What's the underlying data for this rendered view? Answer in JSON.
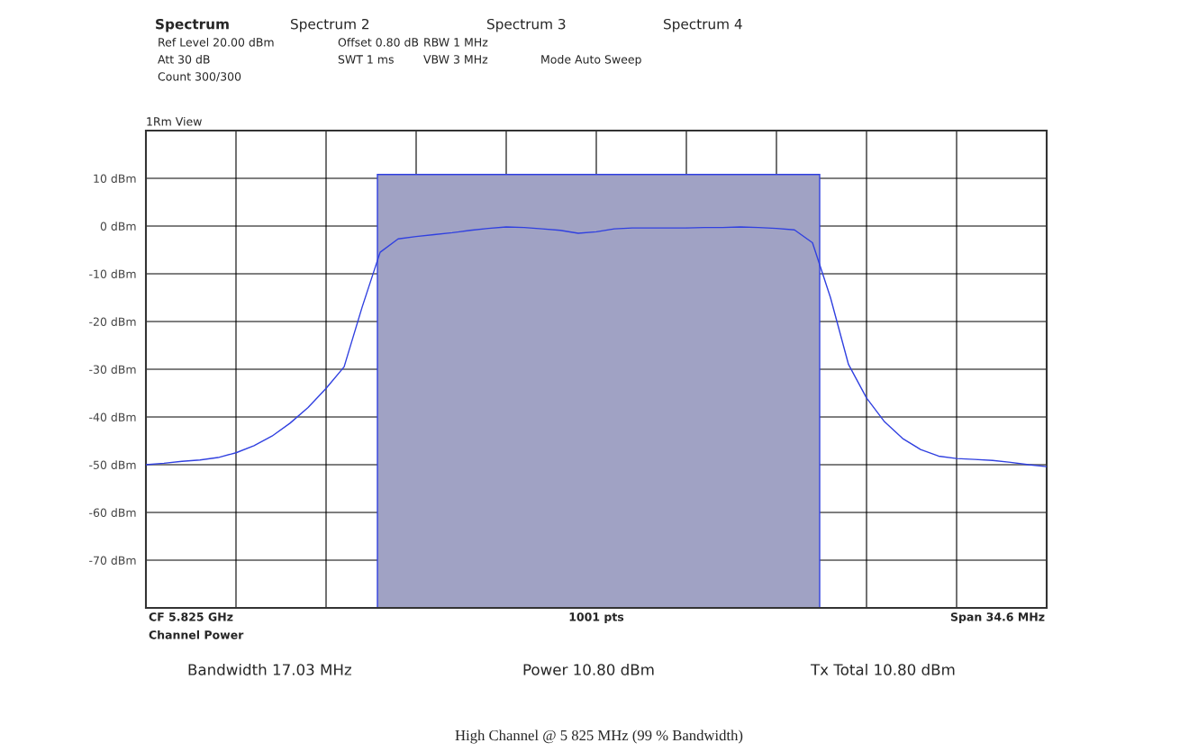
{
  "chart_data": {
    "type": "line",
    "title": "1Rm View",
    "categories": [
      null,
      null,
      null,
      null,
      null,
      null,
      null,
      null,
      null,
      null,
      null,
      null,
      null,
      null,
      null,
      null,
      null,
      null,
      null,
      null,
      null,
      null,
      null,
      null,
      null,
      null,
      null,
      null,
      null,
      null,
      null,
      null,
      null,
      null,
      null,
      null,
      null,
      null,
      null,
      null,
      null,
      null,
      null,
      null,
      null,
      null,
      null,
      null,
      null,
      null,
      null
    ],
    "ylim": [
      -80,
      20
    ],
    "yticks": [
      {
        "value": 10,
        "label": "10 dBm"
      },
      {
        "value": 0,
        "label": "0 dBm"
      },
      {
        "value": -10,
        "label": "-10 dBm"
      },
      {
        "value": -20,
        "label": "-20 dBm"
      },
      {
        "value": -30,
        "label": "-30 dBm"
      },
      {
        "value": -40,
        "label": "-40 dBm"
      },
      {
        "value": -50,
        "label": "-50 dBm"
      },
      {
        "value": -60,
        "label": "-60 dBm"
      },
      {
        "value": -70,
        "label": "-70 dBm"
      }
    ],
    "grid": true,
    "series": [
      {
        "color": "#3040e0",
        "values": [
          -50,
          -49.7,
          -49.3,
          -49,
          -48.5,
          -47.5,
          -46,
          -44,
          -41.3,
          -38,
          -34,
          -29.5,
          -17,
          -5.5,
          -2.7,
          -2.2,
          -1.8,
          -1.4,
          -0.9,
          -0.5,
          -0.2,
          -0.3,
          -0.6,
          -0.9,
          -1.5,
          -1.2,
          -0.6,
          -0.4,
          -0.4,
          -0.4,
          -0.4,
          -0.3,
          -0.3,
          -0.2,
          -0.3,
          -0.5,
          -0.8,
          -3.5,
          -15,
          -29,
          -36,
          -41,
          -44.5,
          -46.8,
          -48.2,
          -48.7,
          -48.9,
          -49.1,
          -49.5,
          -50,
          -50.4
        ]
      }
    ],
    "annotations": [
      "Spectrum",
      "Spectrum 2",
      "Spectrum 3",
      "Spectrum 4",
      "Ref Level 20.00 dBm",
      "Offset 0.80 dB",
      "RBW 1 MHz",
      "Att 30 dB",
      "SWT 1 ms",
      "VBW 3 MHz",
      "Mode Auto Sweep",
      "Count 300/300",
      "CF 5.825 GHz",
      "1001 pts",
      "Span 34.6 MHz",
      "Channel Power",
      "Bandwidth 17.03 MHz",
      "Power 10.80 dBm",
      "Tx Total 10.80 dBm",
      "High Channel @ 5 825 MHz (99 % Bandwidth)"
    ]
  }
}
